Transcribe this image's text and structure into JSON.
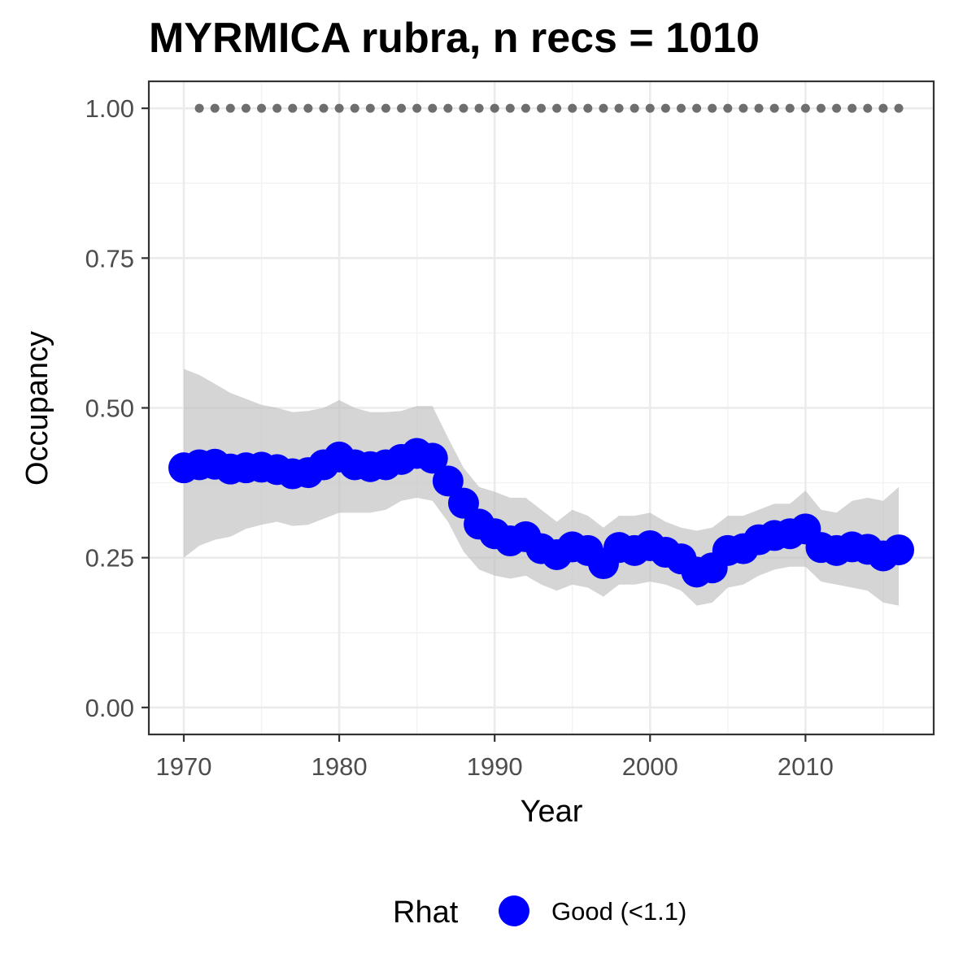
{
  "chart_data": {
    "type": "line",
    "title": "MYRMICA rubra, n recs = 1010",
    "xlabel": "Year",
    "ylabel": "Occupancy",
    "xlim": [
      1967.75,
      2018.25
    ],
    "ylim": [
      -0.045,
      1.045
    ],
    "x_ticks": [
      1970,
      1980,
      1990,
      2000,
      2010
    ],
    "x_tick_labels": [
      "1970",
      "1980",
      "1990",
      "2000",
      "2010"
    ],
    "y_ticks": [
      0.0,
      0.25,
      0.5,
      0.75,
      1.0
    ],
    "y_tick_labels": [
      "0.00",
      "0.25",
      "0.50",
      "0.75",
      "1.00"
    ],
    "grid": true,
    "years": [
      1970,
      1971,
      1972,
      1973,
      1974,
      1975,
      1976,
      1977,
      1978,
      1979,
      1980,
      1981,
      1982,
      1983,
      1984,
      1985,
      1986,
      1987,
      1988,
      1989,
      1990,
      1991,
      1992,
      1993,
      1994,
      1995,
      1996,
      1997,
      1998,
      1999,
      2000,
      2001,
      2002,
      2003,
      2004,
      2005,
      2006,
      2007,
      2008,
      2009,
      2010,
      2011,
      2012,
      2013,
      2014,
      2015,
      2016
    ],
    "series": [
      {
        "name": "Good (<1.1)",
        "color": "#0000ff",
        "values": [
          0.4,
          0.405,
          0.406,
          0.398,
          0.4,
          0.401,
          0.397,
          0.39,
          0.392,
          0.405,
          0.418,
          0.405,
          0.402,
          0.405,
          0.414,
          0.424,
          0.416,
          0.378,
          0.341,
          0.306,
          0.29,
          0.278,
          0.285,
          0.265,
          0.255,
          0.268,
          0.262,
          0.24,
          0.267,
          0.262,
          0.27,
          0.259,
          0.248,
          0.226,
          0.233,
          0.262,
          0.265,
          0.28,
          0.287,
          0.29,
          0.298,
          0.267,
          0.262,
          0.268,
          0.264,
          0.253,
          0.263
        ]
      }
    ],
    "ci_lower": [
      0.25,
      0.27,
      0.28,
      0.285,
      0.298,
      0.305,
      0.31,
      0.303,
      0.305,
      0.315,
      0.325,
      0.325,
      0.325,
      0.33,
      0.345,
      0.35,
      0.345,
      0.31,
      0.26,
      0.23,
      0.22,
      0.215,
      0.22,
      0.205,
      0.195,
      0.205,
      0.2,
      0.185,
      0.205,
      0.205,
      0.21,
      0.205,
      0.195,
      0.17,
      0.175,
      0.2,
      0.205,
      0.22,
      0.23,
      0.235,
      0.235,
      0.21,
      0.205,
      0.2,
      0.195,
      0.175,
      0.17
    ],
    "ci_upper": [
      0.565,
      0.555,
      0.54,
      0.525,
      0.515,
      0.505,
      0.5,
      0.493,
      0.495,
      0.5,
      0.513,
      0.5,
      0.493,
      0.493,
      0.495,
      0.503,
      0.503,
      0.45,
      0.4,
      0.368,
      0.36,
      0.35,
      0.35,
      0.33,
      0.31,
      0.33,
      0.32,
      0.3,
      0.32,
      0.32,
      0.325,
      0.31,
      0.3,
      0.295,
      0.3,
      0.32,
      0.32,
      0.33,
      0.34,
      0.34,
      0.362,
      0.33,
      0.325,
      0.345,
      0.35,
      0.345,
      0.368
    ],
    "ci_color": "#bfbfbf",
    "reference": {
      "name": "reference-dots",
      "y": 1.0,
      "x_start": 1971,
      "x_end": 2016,
      "color": "#6e6e6e"
    },
    "legend": {
      "title": "Rhat",
      "position": "bottom",
      "entries": [
        {
          "label": "Good (<1.1)",
          "color": "#0000ff"
        }
      ]
    }
  }
}
